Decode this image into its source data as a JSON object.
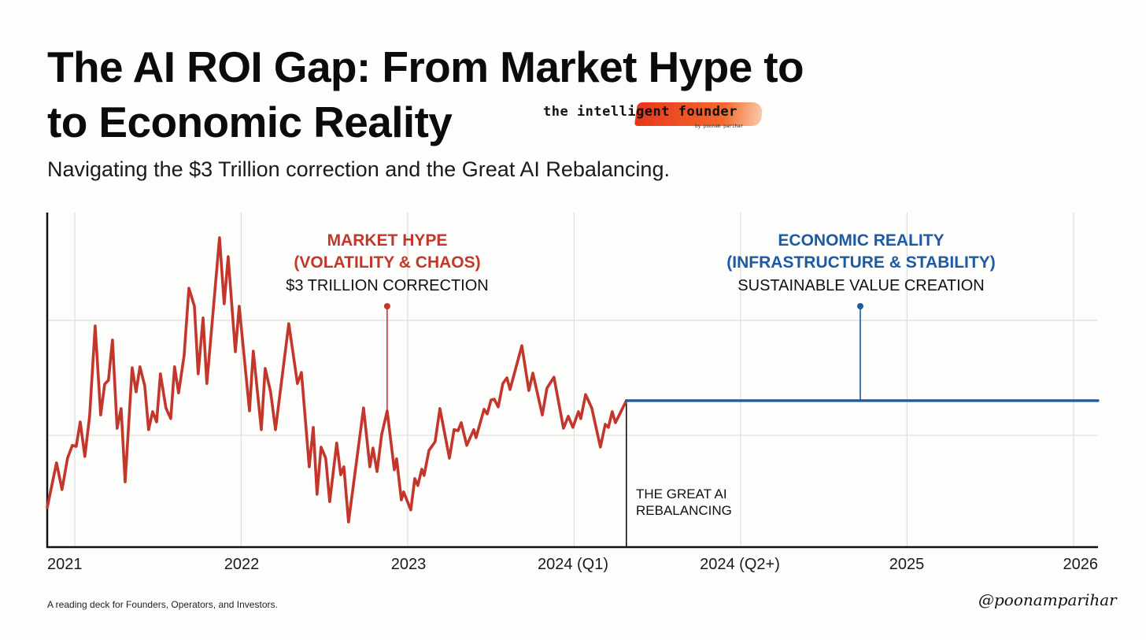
{
  "header": {
    "title_line1": "The AI ROI Gap: From Market Hype to",
    "title_line2": "to Economic Reality",
    "subtitle": "Navigating the $3 Trillion correction and the Great AI Rebalancing."
  },
  "logo": {
    "text": "the intelligent founder",
    "byline": "by poonam parihar"
  },
  "footer": {
    "text": "A reading deck for Founders, Operators, and Investors.",
    "signature": "@poonamparihar"
  },
  "colors": {
    "hype": "#c3362b",
    "reality": "#1c5aa3",
    "grid": "#dddddd",
    "axis": "#111111"
  },
  "chart_data": {
    "type": "line",
    "title": "The AI ROI Gap: From Market Hype to Economic Reality",
    "xlabel": "",
    "ylabel": "",
    "x_ticks": [
      "2021",
      "2022",
      "2023",
      "2024 (Q1)",
      "2024 (Q2+)",
      "2025",
      "2026"
    ],
    "x_units": "tick index (0 = 2021)",
    "y_units": "relative index (unlabeled)",
    "xlim": [
      -0.165,
      6.147
    ],
    "ylim": [
      0,
      100
    ],
    "y_gridlines": [
      33.4,
      67.8
    ],
    "grid": true,
    "series": [
      {
        "name": "Market Hype",
        "color": "#c3362b",
        "points": [
          [
            -0.165,
            11.8
          ],
          [
            -0.109,
            25.2
          ],
          [
            -0.076,
            17.2
          ],
          [
            -0.043,
            26.6
          ],
          [
            -0.014,
            30.4
          ],
          [
            0.009,
            30.1
          ],
          [
            0.033,
            37.4
          ],
          [
            0.061,
            27.1
          ],
          [
            0.09,
            39.3
          ],
          [
            0.123,
            66.1
          ],
          [
            0.156,
            39.5
          ],
          [
            0.18,
            48.7
          ],
          [
            0.203,
            49.9
          ],
          [
            0.227,
            61.9
          ],
          [
            0.255,
            35.5
          ],
          [
            0.279,
            41.4
          ],
          [
            0.303,
            19.5
          ],
          [
            0.345,
            53.6
          ],
          [
            0.369,
            46.4
          ],
          [
            0.392,
            53.9
          ],
          [
            0.421,
            48.2
          ],
          [
            0.444,
            35.1
          ],
          [
            0.468,
            40.5
          ],
          [
            0.492,
            37.4
          ],
          [
            0.515,
            51.8
          ],
          [
            0.548,
            41.6
          ],
          [
            0.577,
            38.4
          ],
          [
            0.6,
            53.9
          ],
          [
            0.624,
            46.1
          ],
          [
            0.657,
            57.2
          ],
          [
            0.686,
            77.4
          ],
          [
            0.719,
            72.0
          ],
          [
            0.742,
            51.8
          ],
          [
            0.771,
            68.5
          ],
          [
            0.794,
            48.9
          ],
          [
            0.87,
            92.5
          ],
          [
            0.898,
            72.7
          ],
          [
            0.922,
            86.8
          ],
          [
            0.965,
            58.4
          ],
          [
            0.988,
            72.0
          ],
          [
            1.05,
            40.7
          ],
          [
            1.073,
            58.6
          ],
          [
            1.121,
            35.1
          ],
          [
            1.144,
            53.4
          ],
          [
            1.177,
            46.4
          ],
          [
            1.206,
            35.1
          ],
          [
            1.286,
            66.8
          ],
          [
            1.338,
            48.9
          ],
          [
            1.362,
            52.2
          ],
          [
            1.409,
            24.0
          ],
          [
            1.433,
            35.8
          ],
          [
            1.456,
            15.8
          ],
          [
            1.48,
            29.9
          ],
          [
            1.508,
            26.6
          ],
          [
            1.532,
            13.6
          ],
          [
            1.574,
            31.1
          ],
          [
            1.598,
            21.6
          ],
          [
            1.617,
            24.0
          ],
          [
            1.645,
            7.5
          ],
          [
            1.735,
            41.6
          ],
          [
            1.773,
            24.0
          ],
          [
            1.792,
            29.6
          ],
          [
            1.816,
            22.6
          ],
          [
            1.844,
            33.6
          ],
          [
            1.877,
            40.7
          ],
          [
            1.92,
            23.1
          ],
          [
            1.934,
            26.4
          ],
          [
            1.962,
            14.1
          ],
          [
            1.976,
            16.5
          ],
          [
            2.019,
            11.1
          ],
          [
            2.043,
            20.5
          ],
          [
            2.061,
            18.4
          ],
          [
            2.085,
            23.3
          ],
          [
            2.099,
            21.4
          ],
          [
            2.128,
            28.9
          ],
          [
            2.165,
            31.5
          ],
          [
            2.194,
            41.4
          ],
          [
            2.251,
            26.6
          ],
          [
            2.279,
            35.1
          ],
          [
            2.303,
            34.8
          ],
          [
            2.322,
            37.2
          ],
          [
            2.355,
            30.4
          ],
          [
            2.397,
            35.1
          ],
          [
            2.411,
            32.7
          ],
          [
            2.459,
            41.2
          ],
          [
            2.478,
            39.8
          ],
          [
            2.501,
            44.0
          ],
          [
            2.52,
            44.2
          ],
          [
            2.544,
            41.9
          ],
          [
            2.572,
            48.9
          ],
          [
            2.596,
            50.6
          ],
          [
            2.615,
            47.1
          ],
          [
            2.686,
            60.2
          ],
          [
            2.728,
            46.8
          ],
          [
            2.752,
            52.0
          ],
          [
            2.809,
            39.5
          ],
          [
            2.837,
            47.5
          ],
          [
            2.879,
            50.8
          ],
          [
            2.936,
            35.5
          ],
          [
            2.965,
            39.1
          ],
          [
            2.993,
            35.8
          ],
          [
            3.026,
            40.5
          ],
          [
            3.04,
            38.4
          ],
          [
            3.069,
            45.6
          ],
          [
            3.106,
            41.6
          ],
          [
            3.158,
            29.9
          ],
          [
            3.187,
            36.7
          ],
          [
            3.206,
            35.8
          ],
          [
            3.229,
            40.5
          ],
          [
            3.248,
            37.2
          ],
          [
            3.314,
            43.8
          ]
        ]
      },
      {
        "name": "Economic Reality",
        "color": "#1c5aa3",
        "points": [
          [
            3.314,
            43.8
          ],
          [
            6.147,
            43.8
          ]
        ]
      }
    ],
    "annotations": [
      {
        "id": "hype",
        "heading1": "MARKET HYPE",
        "heading2": "(VOLATILITY & CHAOS)",
        "subtext": "$3 TRILLION CORRECTION",
        "x": 1.877,
        "y_from": 40.7,
        "y_to": 72.0,
        "color": "#c3362b"
      },
      {
        "id": "reality",
        "heading1": "ECONOMIC REALITY",
        "heading2": "(INFRASTRUCTURE & STABILITY)",
        "subtext": "SUSTAINABLE VALUE CREATION",
        "x": 4.719,
        "y_from": 43.8,
        "y_to": 72.0,
        "color": "#1c5aa3"
      },
      {
        "id": "rebalancing",
        "line1": "THE GREAT AI",
        "line2": "REBALANCING",
        "x": 3.314,
        "y_from": 0,
        "y_to": 43.8
      }
    ]
  }
}
